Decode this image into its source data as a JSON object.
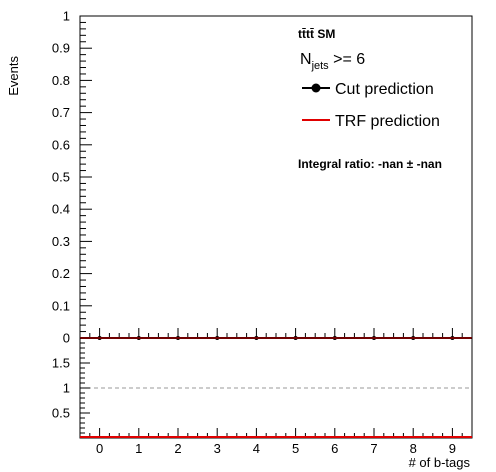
{
  "chart_data": [
    {
      "type": "line",
      "panel": "main",
      "title": "",
      "xlabel": "",
      "ylabel": "Events",
      "xlim": [
        -0.5,
        9.5
      ],
      "ylim": [
        0,
        1
      ],
      "y_ticks": [
        "0",
        "0.1",
        "0.2",
        "0.3",
        "0.4",
        "0.5",
        "0.6",
        "0.7",
        "0.8",
        "0.9",
        "1"
      ],
      "x": [
        0,
        1,
        2,
        3,
        4,
        5,
        6,
        7,
        8,
        9
      ],
      "series": [
        {
          "name": "Cut prediction",
          "marker": "circle",
          "color": "#000000",
          "values": [
            0,
            0,
            0,
            0,
            0,
            0,
            0,
            0,
            0,
            0
          ]
        },
        {
          "name": "TRF prediction",
          "marker": "none",
          "color": "#e00000",
          "values": [
            0,
            0,
            0,
            0,
            0,
            0,
            0,
            0,
            0,
            0
          ]
        }
      ],
      "legend_placement": "top-right",
      "annotations": {
        "sample": "tt̄tt̄ SM",
        "njets_main": "N",
        "njets_sub": "jets",
        "njets_cut": " >= 6",
        "integral_ratio": "Integral ratio: -nan ± -nan"
      }
    },
    {
      "type": "line",
      "panel": "ratio",
      "xlabel": "# of b-tags",
      "ylabel": "",
      "xlim": [
        -0.5,
        9.5
      ],
      "ylim": [
        0,
        2
      ],
      "y_ticks": [
        "0.5",
        "1",
        "1.5"
      ],
      "x_ticks": [
        "0",
        "1",
        "2",
        "3",
        "4",
        "5",
        "6",
        "7",
        "8",
        "9"
      ],
      "reference_line": 1,
      "series": [
        {
          "name": "",
          "color": "#e00000",
          "values": [
            0,
            0,
            0,
            0,
            0,
            0,
            0,
            0,
            0,
            0
          ]
        }
      ]
    }
  ],
  "colors": {
    "trf": "#e00000",
    "cut": "#000000",
    "reference": "#999999"
  }
}
